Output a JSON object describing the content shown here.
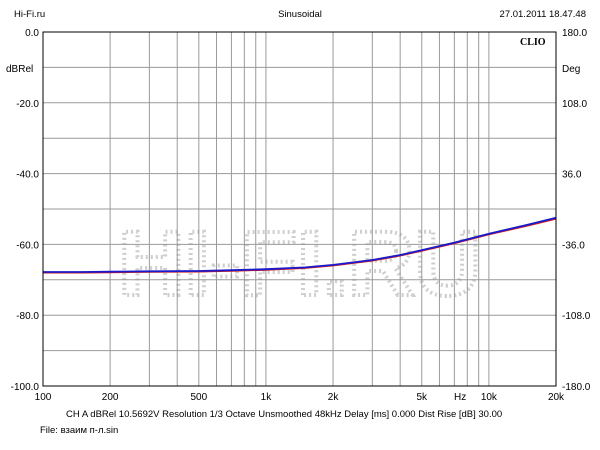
{
  "header": {
    "left": "Hi-Fi.ru",
    "center": "Sinusoidal",
    "right": "27.01.2011 18.47.48"
  },
  "brand": "CLIO",
  "watermark": "HI-FI.RU",
  "footer": {
    "status": "CH A   dBRel 10.5692V   Resolution 1/3 Octave   Unsmoothed   48kHz   Delay [ms] 0.000   Dist Rise [dB] 30.00",
    "file": "File: взаим п-л.sin"
  },
  "colors": {
    "grid": "#9a9a9a",
    "curve_primary": "#1a1acc",
    "curve_secondary": "#cc1a1a"
  },
  "chart_data": {
    "type": "line",
    "x_scale": "log",
    "xlim": [
      100,
      20000
    ],
    "ylim": [
      -100,
      0
    ],
    "y2lim": [
      -180,
      180
    ],
    "ylabel": "dBRel",
    "y2label": "Deg",
    "xunit": "Hz",
    "x_tick_labels": [
      "100",
      "200",
      "500",
      "1k",
      "2k",
      "5k",
      "10k",
      "20k"
    ],
    "x_tick_values": [
      100,
      200,
      500,
      1000,
      2000,
      5000,
      10000,
      20000
    ],
    "y_tick_labels": [
      "0.0",
      "-20.0",
      "-40.0",
      "-60.0",
      "-80.0",
      "-100.0"
    ],
    "y_tick_values": [
      0,
      -20,
      -40,
      -60,
      -80,
      -100
    ],
    "y2_tick_labels": [
      "180.0",
      "108.0",
      "36.0",
      "-36.0",
      "-108.0",
      "-180.0"
    ],
    "y2_tick_values": [
      180,
      108,
      36,
      -36,
      -108,
      -180
    ],
    "grid": true,
    "series": [
      {
        "x": [
          100,
          150,
          200,
          300,
          500,
          700,
          1000,
          1500,
          2000,
          3000,
          4000,
          5000,
          7000,
          10000,
          15000,
          20000
        ],
        "y": [
          -68.0,
          -68.0,
          -67.9,
          -67.8,
          -67.7,
          -67.5,
          -67.2,
          -66.7,
          -66.0,
          -64.6,
          -63.2,
          -61.8,
          -59.7,
          -57.2,
          -54.7,
          -52.8
        ]
      },
      {
        "x": [
          100,
          150,
          200,
          300,
          500,
          700,
          1000,
          1500,
          2000,
          3000,
          4000,
          5000,
          7000,
          10000,
          15000,
          20000
        ],
        "y": [
          -67.8,
          -67.8,
          -67.7,
          -67.6,
          -67.5,
          -67.3,
          -67.0,
          -66.5,
          -65.8,
          -64.4,
          -63.0,
          -61.6,
          -59.5,
          -57.0,
          -54.4,
          -52.5
        ]
      }
    ]
  }
}
